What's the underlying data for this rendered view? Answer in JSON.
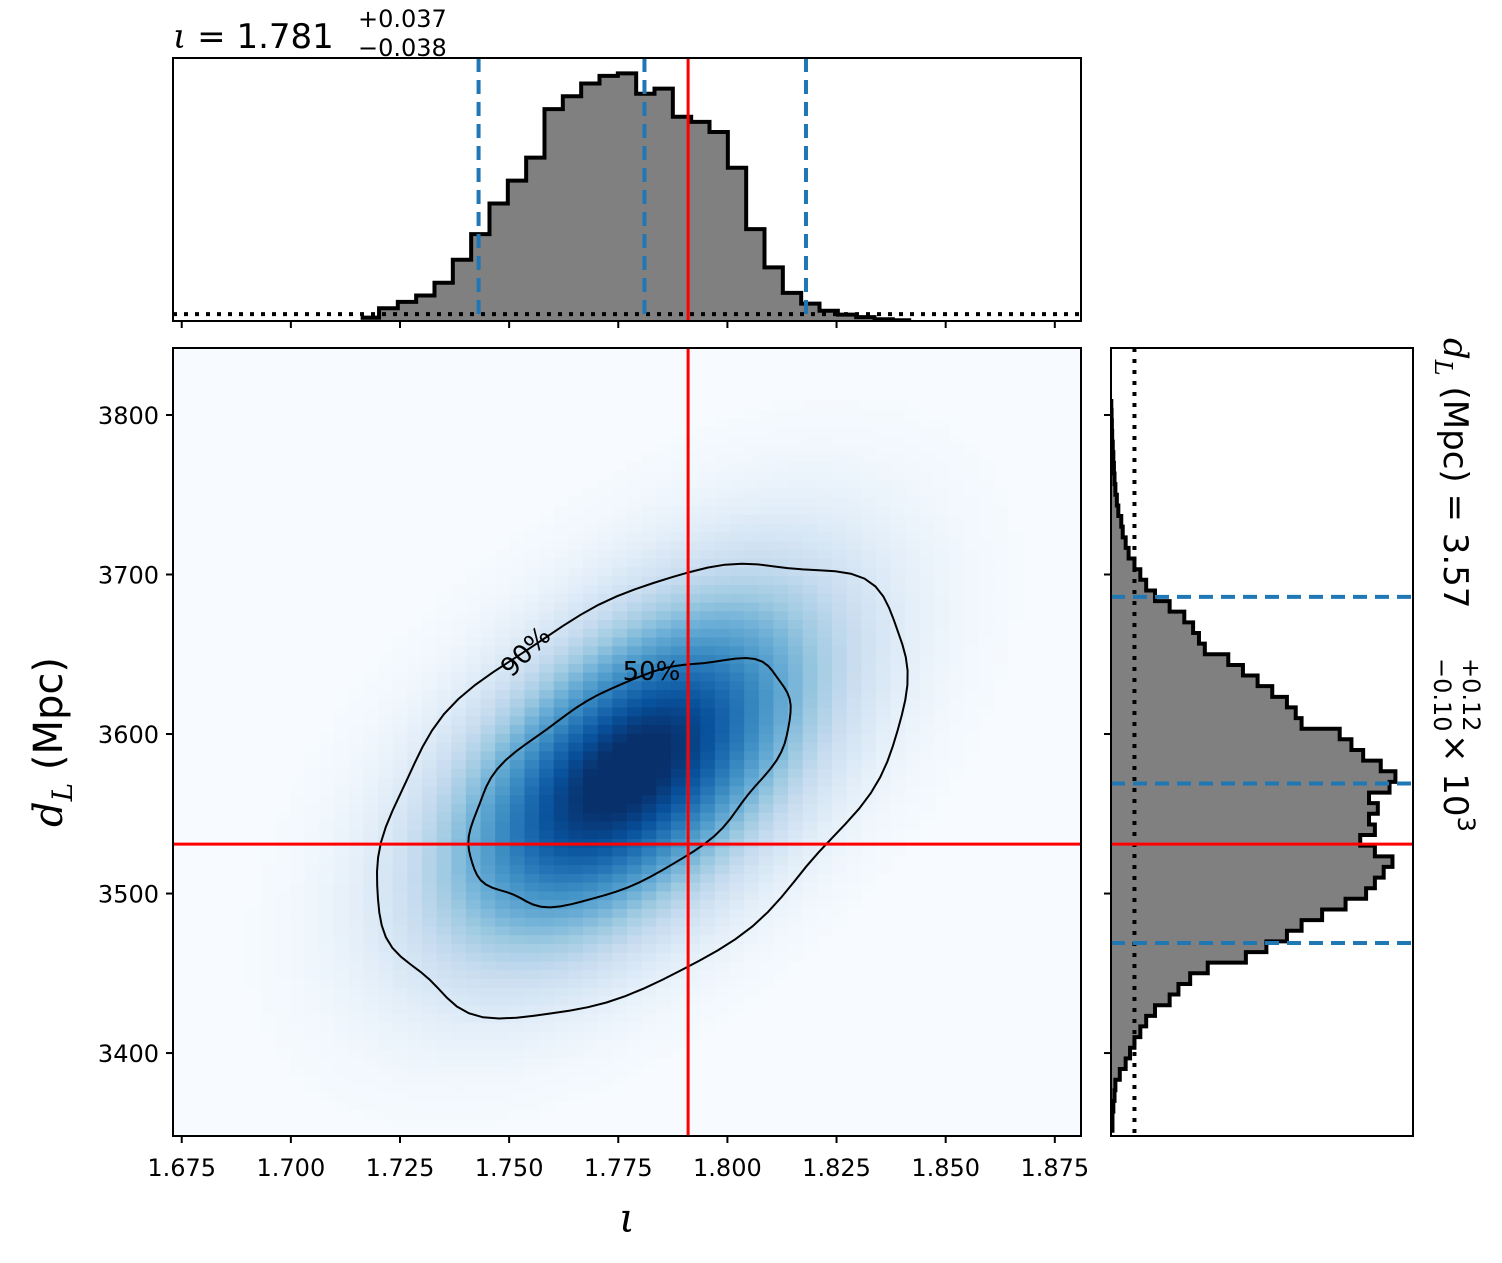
{
  "chart_data": {
    "type": "corner",
    "truth": {
      "iota": 1.791,
      "dL": 3531
    },
    "top_histogram": {
      "type": "histogram",
      "title_symbol": "ι",
      "title_eq": " = ",
      "title_median": "1.781",
      "title_plus": "+0.037",
      "title_minus": "−0.038",
      "xlim": [
        1.673,
        1.881
      ],
      "ylim": [
        0,
        1.03
      ],
      "quantile_lines": [
        1.743,
        1.781,
        1.818
      ],
      "prior_level": 0.027,
      "bin_edges": [
        1.716,
        1.7202,
        1.7245,
        1.7287,
        1.7329,
        1.7371,
        1.7413,
        1.7455,
        1.7497,
        1.7539,
        1.7581,
        1.7623,
        1.7665,
        1.7707,
        1.7749,
        1.7791,
        1.7833,
        1.7875,
        1.7917,
        1.7959,
        1.8001,
        1.8043,
        1.8085,
        1.8127,
        1.8169,
        1.8211,
        1.8253,
        1.8295,
        1.8337,
        1.8379,
        1.8421
      ],
      "counts": [
        0.013,
        0.05,
        0.075,
        0.1,
        0.15,
        0.24,
        0.34,
        0.46,
        0.55,
        0.64,
        0.83,
        0.88,
        0.93,
        0.96,
        0.97,
        0.89,
        0.91,
        0.8,
        0.78,
        0.74,
        0.6,
        0.36,
        0.21,
        0.11,
        0.068,
        0.04,
        0.025,
        0.015,
        0.007,
        0.003
      ]
    },
    "joint": {
      "type": "heatmap",
      "xlabel": "ι",
      "ylabel_symbol": "d",
      "ylabel_sub": "L",
      "ylabel_unit": " (Mpc)",
      "xlim": [
        1.673,
        1.881
      ],
      "ylim": [
        3348,
        3842
      ],
      "xticks": [
        "1.675",
        "1.700",
        "1.725",
        "1.750",
        "1.775",
        "1.800",
        "1.825",
        "1.850",
        "1.875"
      ],
      "yticks": [
        "3400",
        "3500",
        "3600",
        "3700",
        "3800"
      ],
      "density_peaks": [
        {
          "x": 1.776,
          "y": 3574,
          "amp": 1.0
        },
        {
          "x": 1.762,
          "y": 3542,
          "amp": 0.75
        },
        {
          "x": 1.792,
          "y": 3602,
          "amp": 0.55
        },
        {
          "x": 1.8,
          "y": 3640,
          "amp": 0.3
        }
      ],
      "contour_labels": [
        "50%",
        "90%"
      ]
    },
    "right_histogram": {
      "type": "histogram",
      "orientation": "horizontal",
      "label_symbol": "d",
      "label_sub": "L",
      "label_unit": " (Mpc) = ",
      "label_median": "3.57",
      "label_plus": "+0.12",
      "label_minus": "−0.10",
      "label_scale": " × 10",
      "label_exponent": "3",
      "ylim": [
        3348,
        3842
      ],
      "xlim": [
        0,
        1.03
      ],
      "quantile_lines": [
        3469,
        3569,
        3686
      ],
      "prior_level": 0.08,
      "bin_edges": [
        3350,
        3356.7,
        3363.3,
        3370,
        3376.7,
        3383.3,
        3390,
        3396.7,
        3403.3,
        3410,
        3416.7,
        3423.3,
        3430,
        3436.7,
        3443.3,
        3450,
        3456.7,
        3463.3,
        3470,
        3476.7,
        3483.3,
        3490,
        3496.7,
        3503.3,
        3510,
        3516.7,
        3523.3,
        3530,
        3536.7,
        3543.3,
        3550,
        3556.7,
        3563.3,
        3570,
        3576.7,
        3583.3,
        3590,
        3596.7,
        3603.3,
        3610,
        3616.7,
        3623.3,
        3630,
        3636.7,
        3643.3,
        3650,
        3656.7,
        3663.3,
        3670,
        3676.7,
        3683.3,
        3690,
        3696.7,
        3703.3,
        3710,
        3716.7,
        3723.3,
        3730,
        3736.7,
        3743.3,
        3750,
        3756.7,
        3763.3,
        3770,
        3776.7,
        3783.3,
        3790,
        3796.7,
        3803.3,
        3810
      ],
      "counts": [
        0.005,
        0.005,
        0.008,
        0.012,
        0.015,
        0.03,
        0.05,
        0.065,
        0.08,
        0.1,
        0.12,
        0.15,
        0.2,
        0.23,
        0.27,
        0.33,
        0.46,
        0.53,
        0.6,
        0.65,
        0.72,
        0.8,
        0.87,
        0.9,
        0.93,
        0.96,
        0.9,
        0.85,
        0.9,
        0.88,
        0.91,
        0.88,
        0.95,
        0.97,
        0.92,
        0.86,
        0.82,
        0.78,
        0.65,
        0.63,
        0.6,
        0.55,
        0.5,
        0.45,
        0.4,
        0.32,
        0.3,
        0.28,
        0.25,
        0.2,
        0.15,
        0.12,
        0.1,
        0.08,
        0.06,
        0.05,
        0.04,
        0.035,
        0.025,
        0.02,
        0.015,
        0.012,
        0.01,
        0.008,
        0.006,
        0.004,
        0.003,
        0.002,
        0.001
      ]
    }
  }
}
